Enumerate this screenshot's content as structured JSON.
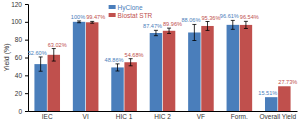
{
  "chart_data": {
    "type": "bar",
    "y_label": "Yield (%)",
    "categories": [
      "IEC",
      "VI",
      "HIC 1",
      "HIC 2",
      "VF",
      "Form.",
      "Overall Yield"
    ],
    "series": [
      {
        "name": "HyClone",
        "color": "#4a7ebb",
        "values": [
          52.6,
          100,
          48.86,
          87.47,
          88.06,
          96.61,
          15.51
        ],
        "value_labels": [
          "52.60%",
          "100%",
          "48.86%",
          "87.47%",
          "88.06%",
          "96.61%",
          "15.51%"
        ],
        "errors": [
          8,
          1,
          4,
          3,
          9,
          5,
          null
        ]
      },
      {
        "name": "Biostat STR",
        "color": "#c0504d",
        "values": [
          63.02,
          99.47,
          54.68,
          89.96,
          95.36,
          96.54,
          27.73
        ],
        "value_labels": [
          "63.02%",
          "99.47%",
          "54.68%",
          "89.96%",
          "95.36%",
          "96.54%",
          "27.73%"
        ],
        "errors": [
          7,
          1,
          4,
          3,
          5,
          4,
          null
        ]
      }
    ],
    "ylim": [
      0,
      120
    ],
    "yticks": [
      0,
      20,
      40,
      60,
      80,
      100,
      120
    ],
    "grid": false,
    "legend": "top",
    "data_labels": true
  }
}
